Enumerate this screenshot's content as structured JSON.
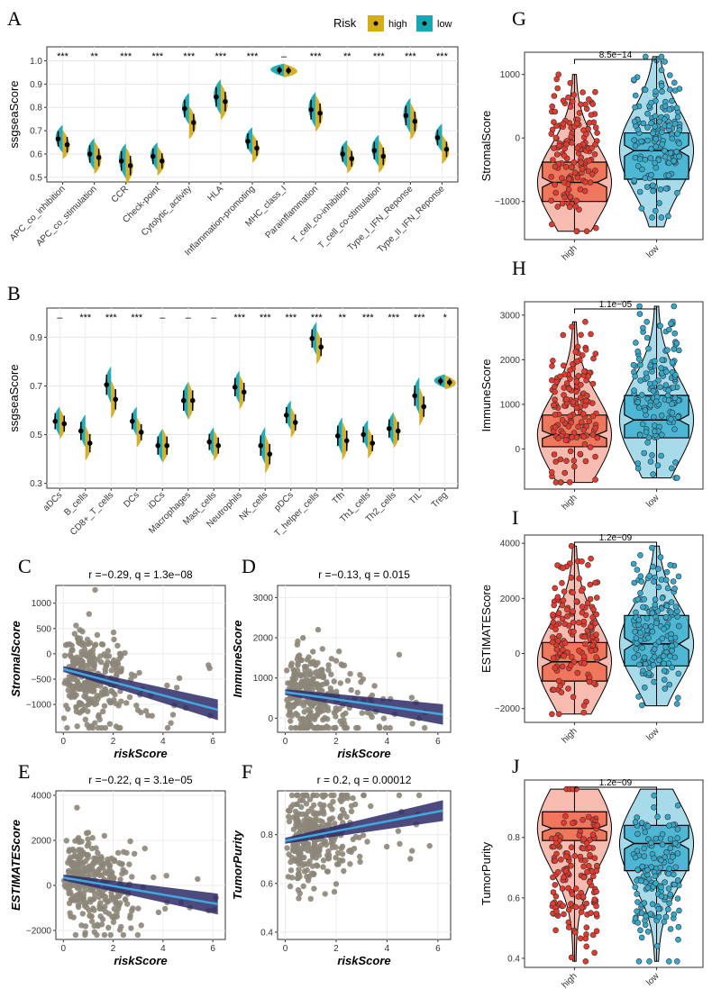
{
  "panel_labels": {
    "A": "A",
    "B": "B",
    "C": "C",
    "D": "D",
    "E": "E",
    "F": "F",
    "G": "G",
    "H": "H",
    "I": "I",
    "J": "J"
  },
  "legend": {
    "title": "Risk",
    "high": "high",
    "low": "low",
    "high_color": "#D4AC1C",
    "low_color": "#1AA6B0"
  },
  "chart_data": [
    {
      "id": "A",
      "type": "violin",
      "ylabel": "ssgseaScore",
      "ylim": [
        0.48,
        1.06
      ],
      "yticks": [
        0.5,
        0.6,
        0.7,
        0.8,
        0.9,
        1.0
      ],
      "ytick_labels": [
        "0.5",
        "0.6",
        "0.7",
        "0.8",
        "0.9",
        "1.0"
      ],
      "categories": [
        "APC_co_inhibition",
        "APC_co_stimulation",
        "CCR",
        "Check-point",
        "Cytolytic_activity",
        "HLA",
        "Inflammation-promoting",
        "MHC_class_I",
        "Parainflammation",
        "T_cell_co-inhibition",
        "T_cell_co-stimulation",
        "Type_I_IFN_Reponse",
        "Type_II_IFN_Reponse"
      ],
      "significance": [
        "***",
        "**",
        "***",
        "***",
        "***",
        "***",
        "***",
        "–",
        "***",
        "**",
        "***",
        "***",
        "***"
      ],
      "series": [
        {
          "name": "high",
          "medians": [
            0.665,
            0.6,
            0.57,
            0.59,
            0.795,
            0.845,
            0.655,
            0.96,
            0.79,
            0.6,
            0.615,
            0.765,
            0.67
          ]
        },
        {
          "name": "low",
          "medians": [
            0.64,
            0.585,
            0.55,
            0.57,
            0.735,
            0.825,
            0.625,
            0.958,
            0.775,
            0.58,
            0.59,
            0.74,
            0.62
          ]
        }
      ]
    },
    {
      "id": "B",
      "type": "violin",
      "ylabel": "ssgseaScore",
      "ylim": [
        0.28,
        1.02
      ],
      "yticks": [
        0.3,
        0.5,
        0.7,
        0.9
      ],
      "ytick_labels": [
        "0.3",
        "0.5",
        "0.7",
        "0.9"
      ],
      "categories": [
        "aDCs",
        "B_cells",
        "CD8+_T_cells",
        "DCs",
        "iDCs",
        "Macrophages",
        "Mast_cells",
        "Neutrophils",
        "NK_cells",
        "pDCs",
        "T_helper_cells",
        "Tfh",
        "Th1_cells",
        "Th2_cells",
        "TIL",
        "Treg"
      ],
      "significance": [
        "–",
        "***",
        "***",
        "***",
        "–",
        "–",
        "–",
        "***",
        "***",
        "***",
        "***",
        "**",
        "***",
        "***",
        "***",
        "*"
      ],
      "series": [
        {
          "name": "high",
          "medians": [
            0.555,
            0.515,
            0.705,
            0.555,
            0.455,
            0.64,
            0.47,
            0.695,
            0.455,
            0.58,
            0.895,
            0.495,
            0.5,
            0.525,
            0.66,
            0.72
          ]
        },
        {
          "name": "low",
          "medians": [
            0.545,
            0.465,
            0.645,
            0.51,
            0.455,
            0.64,
            0.455,
            0.675,
            0.42,
            0.55,
            0.86,
            0.475,
            0.465,
            0.515,
            0.615,
            0.715
          ]
        }
      ]
    },
    {
      "id": "C",
      "type": "scatter",
      "title": "r =−0.29, q = 1.3e−08",
      "xlabel": "riskScore",
      "ylabel": "StromalScore",
      "xlim": [
        -0.3,
        6.5
      ],
      "ylim": [
        -1550,
        1350
      ],
      "xticks": [
        0,
        2,
        4,
        6
      ],
      "yticks": [
        -1000,
        -500,
        0,
        500,
        1000
      ],
      "ytick_labels": [
        "−1000",
        "−500",
        "0",
        "500",
        "1000"
      ],
      "fit": {
        "intercept": -300,
        "slope": -130
      }
    },
    {
      "id": "D",
      "type": "scatter",
      "title": "r =−0.13, q = 0.015",
      "xlabel": "riskScore",
      "ylabel": "ImmuneScore",
      "xlim": [
        -0.3,
        6.5
      ],
      "ylim": [
        -350,
        3300
      ],
      "xticks": [
        0,
        2,
        4,
        6
      ],
      "yticks": [
        0,
        1000,
        2000,
        3000
      ],
      "ytick_labels": [
        "0",
        "1000",
        "2000",
        "3000"
      ],
      "fit": {
        "intercept": 650,
        "slope": -90
      }
    },
    {
      "id": "E",
      "type": "scatter",
      "title": "r =−0.22, q = 3.1e−05",
      "xlabel": "riskScore",
      "ylabel": "ESTIMATEScore",
      "xlim": [
        -0.3,
        6.5
      ],
      "ylim": [
        -2400,
        4200
      ],
      "xticks": [
        0,
        2,
        4,
        6
      ],
      "yticks": [
        -2000,
        0,
        2000,
        4000
      ],
      "ytick_labels": [
        "−2000",
        "0",
        "2000",
        "4000"
      ],
      "fit": {
        "intercept": 350,
        "slope": -190
      }
    },
    {
      "id": "F",
      "type": "scatter",
      "title": "r = 0.2, q = 0.00012",
      "xlabel": "riskScore",
      "ylabel": "TumorPurity",
      "xlim": [
        -0.3,
        6.5
      ],
      "ylim": [
        0.37,
        0.98
      ],
      "xticks": [
        0,
        2,
        4,
        6
      ],
      "yticks": [
        0.4,
        0.6,
        0.8
      ],
      "ytick_labels": [
        "0.4",
        "0.6",
        "0.8"
      ],
      "fit": {
        "intercept": 0.775,
        "slope": 0.02
      }
    },
    {
      "id": "G",
      "type": "boxviolin",
      "ylabel": "StromalScore",
      "pvalue": "8.5e−14",
      "categories": [
        "high",
        "low"
      ],
      "ylim": [
        -1600,
        1350
      ],
      "yticks": [
        -1000,
        0,
        1000
      ],
      "ytick_labels": [
        "−1000",
        "0",
        "1000"
      ],
      "stats": [
        {
          "median": -700,
          "q1": -1000,
          "q3": -380,
          "min": -1470,
          "max": 1000
        },
        {
          "median": -200,
          "q1": -650,
          "q3": 80,
          "min": -1400,
          "max": 1280
        }
      ]
    },
    {
      "id": "H",
      "type": "boxviolin",
      "ylabel": "ImmuneScore",
      "pvalue": "1.1e−05",
      "categories": [
        "high",
        "low"
      ],
      "ylim": [
        -900,
        3300
      ],
      "yticks": [
        0,
        1000,
        2000,
        3000
      ],
      "ytick_labels": [
        "0",
        "1000",
        "2000",
        "3000"
      ],
      "stats": [
        {
          "median": 320,
          "q1": 50,
          "q3": 760,
          "min": -750,
          "max": 2850
        },
        {
          "median": 650,
          "q1": 250,
          "q3": 1200,
          "min": -650,
          "max": 3200
        }
      ]
    },
    {
      "id": "I",
      "type": "boxviolin",
      "ylabel": "ESTIMATEScore",
      "pvalue": "1.2e−09",
      "categories": [
        "high",
        "low"
      ],
      "ylim": [
        -2500,
        4300
      ],
      "yticks": [
        -2000,
        0,
        2000,
        4000
      ],
      "ytick_labels": [
        "−2000",
        "0",
        "2000",
        "4000"
      ],
      "stats": [
        {
          "median": -300,
          "q1": -1000,
          "q3": 400,
          "min": -2200,
          "max": 3900
        },
        {
          "median": 350,
          "q1": -450,
          "q3": 1380,
          "min": -1900,
          "max": 3900
        }
      ]
    },
    {
      "id": "J",
      "type": "boxviolin",
      "ylabel": "TumorPurity",
      "pvalue": "1.2e−09",
      "categories": [
        "high",
        "low"
      ],
      "ylim": [
        0.37,
        0.99
      ],
      "yticks": [
        0.4,
        0.6,
        0.8
      ],
      "ytick_labels": [
        "0.4",
        "0.6",
        "0.8"
      ],
      "stats": [
        {
          "median": 0.83,
          "q1": 0.79,
          "q3": 0.885,
          "min": 0.39,
          "max": 0.96
        },
        {
          "median": 0.78,
          "q1": 0.69,
          "q3": 0.84,
          "min": 0.39,
          "max": 0.96
        }
      ]
    }
  ],
  "box_colors": {
    "high": "#EE6B4D",
    "low": "#3EB0D0"
  }
}
